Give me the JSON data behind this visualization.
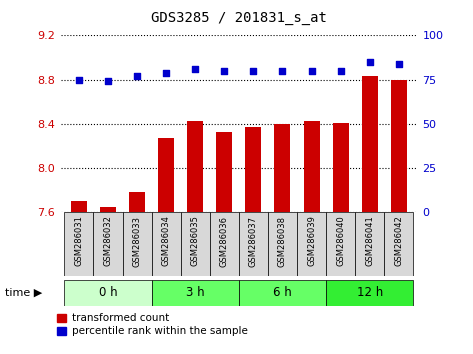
{
  "title": "GDS3285 / 201831_s_at",
  "samples": [
    "GSM286031",
    "GSM286032",
    "GSM286033",
    "GSM286034",
    "GSM286035",
    "GSM286036",
    "GSM286037",
    "GSM286038",
    "GSM286039",
    "GSM286040",
    "GSM286041",
    "GSM286042"
  ],
  "bar_values": [
    7.7,
    7.65,
    7.78,
    8.27,
    8.43,
    8.33,
    8.37,
    8.4,
    8.43,
    8.41,
    8.83,
    8.8
  ],
  "dot_values": [
    75,
    74,
    77,
    79,
    81,
    80,
    80,
    80,
    80,
    80,
    85,
    84
  ],
  "bar_color": "#cc0000",
  "dot_color": "#0000cc",
  "ylim_left": [
    7.6,
    9.2
  ],
  "ylim_right": [
    0,
    100
  ],
  "yticks_left": [
    7.6,
    8.0,
    8.4,
    8.8,
    9.2
  ],
  "yticks_right": [
    0,
    25,
    50,
    75,
    100
  ],
  "groups": [
    {
      "label": "0 h",
      "start": 0,
      "end": 3,
      "color": "#ccffcc"
    },
    {
      "label": "3 h",
      "start": 3,
      "end": 6,
      "color": "#66ff66"
    },
    {
      "label": "6 h",
      "start": 6,
      "end": 9,
      "color": "#66ff66"
    },
    {
      "label": "12 h",
      "start": 9,
      "end": 12,
      "color": "#33ee33"
    }
  ],
  "time_label": "time",
  "legend_bar_label": "transformed count",
  "legend_dot_label": "percentile rank within the sample",
  "tick_label_color_left": "#cc0000",
  "tick_label_color_right": "#0000cc",
  "label_bg_color": "#d8d8d8",
  "grid_color": "black",
  "grid_linestyle": "dotted",
  "grid_linewidth": 0.8
}
